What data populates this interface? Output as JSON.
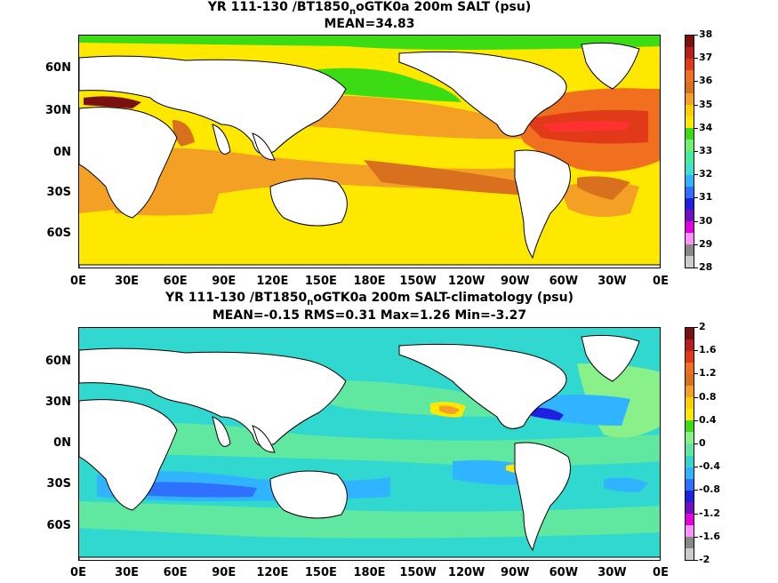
{
  "panel_top": {
    "title_prefix": "YR 111-130 /BT1850",
    "title_sub": "n",
    "title_suffix": "oGTK0a 200m SALT (psu)",
    "stats": "MEAN=34.83",
    "colorbar": {
      "labels": [
        "38",
        "37",
        "36",
        "35",
        "34",
        "33",
        "32",
        "31",
        "30",
        "29",
        "28"
      ],
      "colors": [
        "#7a1010",
        "#b81f1f",
        "#e03a18",
        "#f07020",
        "#d8701e",
        "#f3a025",
        "#ffd000",
        "#ffe800",
        "#3cdc14",
        "#70f070",
        "#40f0a0",
        "#40e0d0",
        "#30b4ff",
        "#3070ff",
        "#2020e0",
        "#7010c0",
        "#e000e0",
        "#ff90ff",
        "#888888",
        "#cccccc"
      ]
    }
  },
  "panel_bottom": {
    "title_prefix": "YR 111-130 /BT1850",
    "title_sub": "n",
    "title_suffix": "oGTK0a 200m SALT-climatology (psu)",
    "stats": "MEAN=-0.15   RMS=0.31   Max=1.26   Min=-3.27",
    "colorbar": {
      "labels": [
        "2",
        "1.6",
        "1.2",
        "0.8",
        "0.4",
        "0",
        "-0.4",
        "-0.8",
        "-1.2",
        "-1.6",
        "-2"
      ],
      "colors": [
        "#7a1010",
        "#b81f1f",
        "#e03a18",
        "#f07020",
        "#d8701e",
        "#f3a025",
        "#ffd000",
        "#ffe800",
        "#3cdc14",
        "#8af08a",
        "#60e8a0",
        "#30d8d0",
        "#30b4ff",
        "#3070ff",
        "#2020e0",
        "#7010c0",
        "#e000e0",
        "#ff90ff",
        "#888888",
        "#cccccc"
      ]
    }
  },
  "axes": {
    "x_labels": [
      "0E",
      "30E",
      "60E",
      "90E",
      "120E",
      "150E",
      "180E",
      "150W",
      "120W",
      "90W",
      "60W",
      "30W",
      "0E"
    ],
    "y_labels": [
      "60N",
      "30N",
      "0N",
      "30S",
      "60S"
    ]
  }
}
